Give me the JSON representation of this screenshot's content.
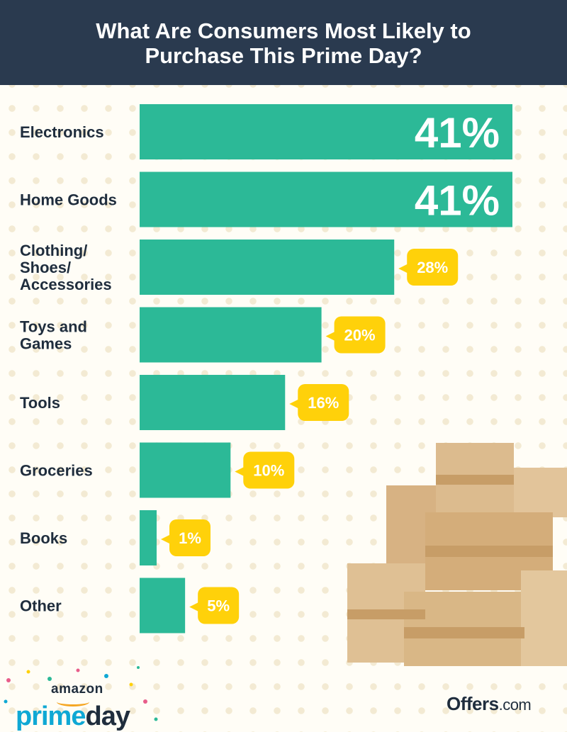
{
  "title_line1": "What Are Consumers Most Likely to",
  "title_line2": "Purchase This Prime Day?",
  "colors": {
    "header_bg": "#2a3a4f",
    "bar": "#2cb997",
    "bubble": "#ffd10a",
    "label": "#1f2d3d"
  },
  "chart_data": {
    "type": "bar",
    "orientation": "horizontal",
    "title": "What Are Consumers Most Likely to Purchase This Prime Day?",
    "categories": [
      [
        "Electronics"
      ],
      [
        "Home Goods"
      ],
      [
        "Clothing/",
        "Shoes/",
        "Accessories"
      ],
      [
        "Toys and",
        "Games"
      ],
      [
        "Tools"
      ],
      [
        "Groceries"
      ],
      [
        "Books"
      ],
      [
        "Other"
      ]
    ],
    "values": [
      41,
      41,
      28,
      20,
      16,
      10,
      1,
      5
    ],
    "value_labels": [
      "41%",
      "41%",
      "28%",
      "20%",
      "16%",
      "10%",
      "1%",
      "5%"
    ],
    "value_unit": "%",
    "grid": false,
    "legend": "none"
  },
  "logos": {
    "amazon": "amazon",
    "prime": "prime",
    "day": "day",
    "offers": "Offers",
    "offers_com": ".com"
  }
}
